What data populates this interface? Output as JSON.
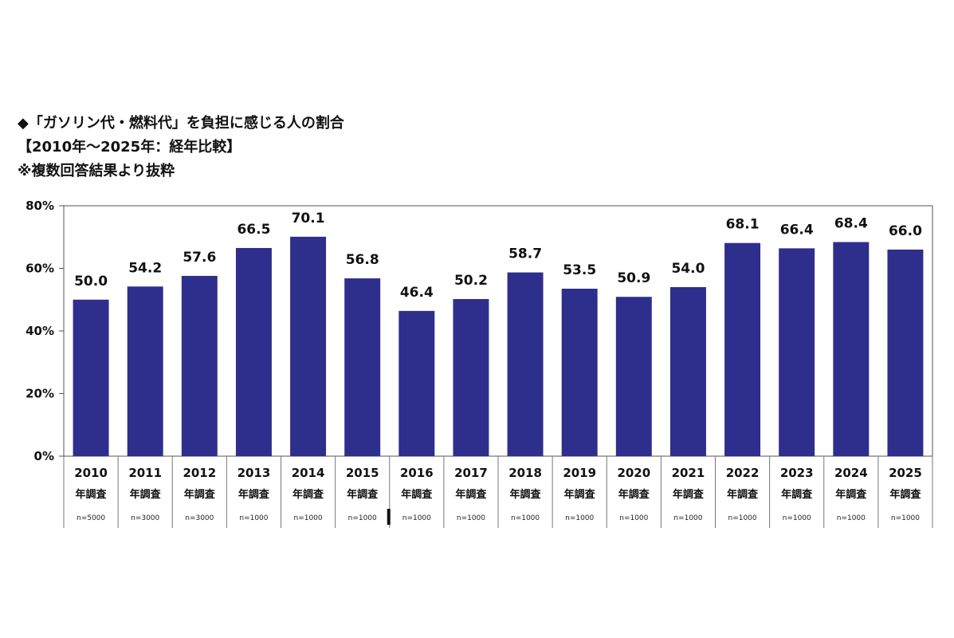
{
  "header": {
    "title": "◆「ガソリン代・燃料代」を負担に感じる人の割合",
    "subtitle": "【2010年～2025年：経年比較】",
    "note": "※複数回答結果より抜粋"
  },
  "chart_data": {
    "type": "bar",
    "categories": [
      "2010",
      "2011",
      "2012",
      "2013",
      "2014",
      "2015",
      "2016",
      "2017",
      "2018",
      "2019",
      "2020",
      "2021",
      "2022",
      "2023",
      "2024",
      "2025"
    ],
    "category_suffix": "年調査",
    "sample_sizes": [
      "n=5000",
      "n=3000",
      "n=3000",
      "n=1000",
      "n=1000",
      "n=1000",
      "n=1000",
      "n=1000",
      "n=1000",
      "n=1000",
      "n=1000",
      "n=1000",
      "n=1000",
      "n=1000",
      "n=1000",
      "n=1000"
    ],
    "values": [
      50.0,
      54.2,
      57.6,
      66.5,
      70.1,
      56.8,
      46.4,
      50.2,
      58.7,
      53.5,
      50.9,
      54.0,
      68.1,
      66.4,
      68.4,
      66.0
    ],
    "value_labels": [
      "50.0",
      "54.2",
      "57.6",
      "66.5",
      "70.1",
      "56.8",
      "46.4",
      "50.2",
      "58.7",
      "53.5",
      "50.9",
      "54.0",
      "68.1",
      "66.4",
      "68.4",
      "66.0"
    ],
    "ylim": [
      0,
      80
    ],
    "yticks": [
      "0%",
      "20%",
      "40%",
      "60%",
      "80%"
    ],
    "grid": false,
    "bar_color": "#2e2e8c",
    "axis_color": "#555555"
  }
}
